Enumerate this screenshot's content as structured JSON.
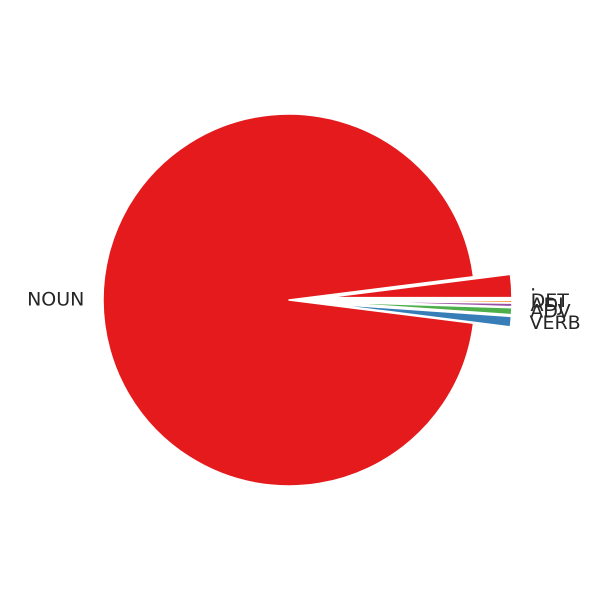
{
  "chart_data": {
    "type": "pie",
    "title": "",
    "start_angle_deg": 0,
    "slices": [
      {
        "label": ".",
        "value": 2.0,
        "color": "#e41a1c",
        "explode": true
      },
      {
        "label": "NOUN",
        "value": 96.0,
        "color": "#e41a1c",
        "explode": false
      },
      {
        "label": "VERB",
        "value": 0.9,
        "color": "#377eb8",
        "explode": true
      },
      {
        "label": "ADV",
        "value": 0.6,
        "color": "#4daf4a",
        "explode": true
      },
      {
        "label": "ADJ",
        "value": 0.3,
        "color": "#984ea3",
        "explode": true
      },
      {
        "label": "DET",
        "value": 0.2,
        "color": "#ff7f00",
        "explode": true
      }
    ]
  }
}
